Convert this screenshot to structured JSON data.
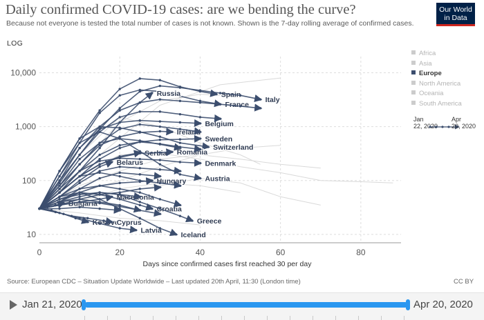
{
  "header": {
    "title": "Daily confirmed COVID-19 cases: are we bending the curve?",
    "subtitle": "Because not everyone is tested the total number of cases is not known. Shown is the 7-day rolling average of confirmed cases.",
    "scale": "LOG",
    "logo": "Our World in Data"
  },
  "legend": {
    "items": [
      {
        "label": "Africa",
        "active": false
      },
      {
        "label": "Asia",
        "active": false
      },
      {
        "label": "Europe",
        "active": true
      },
      {
        "label": "North America",
        "active": false
      },
      {
        "label": "Oceania",
        "active": false
      },
      {
        "label": "South America",
        "active": false
      }
    ],
    "time_start": "Jan 22, 2020",
    "time_end": "Apr 20, 2020"
  },
  "footer": {
    "source": "Source: European CDC – Situation Update Worldwide – Last updated 20th April, 11:30 (London time)",
    "license": "CC BY"
  },
  "timeline": {
    "start": "Jan 21, 2020",
    "end": "Apr 20, 2020"
  },
  "colors": {
    "line": "#3c4e6e",
    "faint_line": "#d9d9d9",
    "grid": "#dddddd",
    "slider": "#2a97f0"
  },
  "chart_data": {
    "type": "line",
    "title": "Daily confirmed COVID-19 cases: are we bending the curve?",
    "xlabel": "Days since confirmed cases first reached 30 per day",
    "ylabel": "",
    "yscale": "log",
    "xlim": [
      0,
      90
    ],
    "ylim": [
      7,
      20000
    ],
    "xticks": [
      0,
      20,
      40,
      60,
      80
    ],
    "yticks": [
      10,
      100,
      1000,
      10000
    ],
    "ytick_labels": [
      "10",
      "100",
      "1,000",
      "10,000"
    ],
    "series": [
      {
        "name": "Spain",
        "x": [
          0,
          5,
          10,
          15,
          20,
          25,
          30,
          35,
          40,
          44
        ],
        "y": [
          30,
          150,
          600,
          2000,
          5000,
          7800,
          7300,
          5500,
          4500,
          4000
        ],
        "label": true
      },
      {
        "name": "Italy",
        "x": [
          0,
          5,
          10,
          15,
          20,
          25,
          30,
          35,
          40,
          45,
          50,
          55
        ],
        "y": [
          30,
          100,
          300,
          900,
          2200,
          4500,
          5700,
          5300,
          4700,
          4200,
          3800,
          3200
        ],
        "label": true
      },
      {
        "name": "France",
        "x": [
          0,
          5,
          10,
          15,
          20,
          25,
          30,
          35,
          40,
          45
        ],
        "y": [
          30,
          120,
          500,
          1800,
          3800,
          4800,
          4500,
          3700,
          3000,
          2600
        ],
        "label": true
      },
      {
        "name": "Russia",
        "x": [
          0,
          5,
          10,
          15,
          20,
          25,
          28
        ],
        "y": [
          30,
          60,
          150,
          400,
          1200,
          2800,
          4200
        ],
        "label": true
      },
      {
        "name": "Belgium",
        "x": [
          0,
          5,
          10,
          15,
          20,
          25,
          30,
          35,
          40
        ],
        "y": [
          30,
          100,
          400,
          900,
          1200,
          1300,
          1250,
          1200,
          1150
        ],
        "label": true
      },
      {
        "name": "Ireland",
        "x": [
          0,
          5,
          10,
          15,
          20,
          25,
          30,
          33
        ],
        "y": [
          30,
          80,
          200,
          450,
          650,
          780,
          820,
          800
        ],
        "label": true
      },
      {
        "name": "Sweden",
        "x": [
          0,
          5,
          10,
          15,
          20,
          25,
          30,
          35,
          40
        ],
        "y": [
          30,
          60,
          120,
          250,
          400,
          520,
          570,
          580,
          600
        ],
        "label": true
      },
      {
        "name": "Switzerland",
        "x": [
          0,
          5,
          10,
          15,
          20,
          25,
          30,
          35,
          42
        ],
        "y": [
          30,
          150,
          600,
          1000,
          950,
          800,
          650,
          500,
          420
        ],
        "label": true
      },
      {
        "name": "Serbia",
        "x": [
          0,
          5,
          10,
          15,
          20,
          25
        ],
        "y": [
          30,
          60,
          120,
          200,
          280,
          330
        ],
        "label": true
      },
      {
        "name": "Romania",
        "x": [
          0,
          5,
          10,
          15,
          20,
          25,
          30,
          33
        ],
        "y": [
          30,
          60,
          120,
          200,
          270,
          320,
          330,
          340
        ],
        "label": true
      },
      {
        "name": "Belarus",
        "x": [
          0,
          5,
          10,
          15,
          18
        ],
        "y": [
          30,
          50,
          100,
          180,
          220
        ],
        "label": true
      },
      {
        "name": "Denmark",
        "x": [
          0,
          5,
          10,
          15,
          20,
          25,
          30,
          35,
          40
        ],
        "y": [
          30,
          70,
          150,
          230,
          260,
          250,
          240,
          220,
          210
        ],
        "label": true
      },
      {
        "name": "Austria",
        "x": [
          0,
          5,
          10,
          15,
          20,
          25,
          30,
          35,
          40
        ],
        "y": [
          30,
          150,
          500,
          800,
          600,
          350,
          200,
          130,
          110
        ],
        "label": true
      },
      {
        "name": "Hungary",
        "x": [
          0,
          5,
          10,
          15,
          20,
          25,
          28
        ],
        "y": [
          30,
          40,
          60,
          80,
          90,
          95,
          100
        ],
        "label": true
      },
      {
        "name": "Bulgaria",
        "x": [
          0,
          2,
          4,
          6
        ],
        "y": [
          30,
          32,
          35,
          38
        ],
        "label": true
      },
      {
        "name": "Macedonia",
        "x": [
          0,
          5,
          10,
          15,
          18
        ],
        "y": [
          30,
          35,
          40,
          45,
          50
        ],
        "label": true
      },
      {
        "name": "Croatia",
        "x": [
          0,
          5,
          10,
          15,
          20,
          25,
          28
        ],
        "y": [
          30,
          45,
          60,
          55,
          45,
          35,
          30
        ],
        "label": true
      },
      {
        "name": "Greece",
        "x": [
          0,
          5,
          10,
          15,
          20,
          25,
          30,
          35,
          38
        ],
        "y": [
          30,
          45,
          55,
          60,
          55,
          40,
          30,
          22,
          18
        ],
        "label": true
      },
      {
        "name": "Kosovo",
        "x": [
          0,
          3,
          6,
          9,
          12
        ],
        "y": [
          30,
          28,
          24,
          20,
          17
        ],
        "label": true
      },
      {
        "name": "Cyprus",
        "x": [
          0,
          4,
          8,
          12,
          16,
          18
        ],
        "y": [
          30,
          26,
          22,
          20,
          18,
          17
        ],
        "label": true
      },
      {
        "name": "Latvia",
        "x": [
          0,
          5,
          10,
          15,
          20,
          24
        ],
        "y": [
          30,
          25,
          20,
          16,
          13,
          12
        ],
        "label": true
      },
      {
        "name": "Iceland",
        "x": [
          0,
          5,
          10,
          15,
          20,
          25,
          30,
          34
        ],
        "y": [
          30,
          50,
          60,
          45,
          30,
          20,
          13,
          10
        ],
        "label": true
      },
      {
        "name": "",
        "x": [
          0,
          5,
          10,
          15,
          20,
          25,
          30,
          35,
          40,
          45,
          50,
          55
        ],
        "y": [
          30,
          120,
          400,
          1000,
          2000,
          2800,
          3200,
          3000,
          2800,
          2600,
          2400,
          2200
        ],
        "label": false
      },
      {
        "name": "",
        "x": [
          0,
          5,
          10,
          15,
          20,
          25,
          30,
          35,
          40,
          45
        ],
        "y": [
          30,
          90,
          300,
          800,
          1500,
          1900,
          1900,
          1700,
          1500,
          1400
        ],
        "label": false
      },
      {
        "name": "",
        "x": [
          0,
          5,
          10,
          15,
          20,
          25,
          30,
          35,
          40
        ],
        "y": [
          30,
          70,
          200,
          500,
          900,
          1100,
          1000,
          900,
          800
        ],
        "label": false
      },
      {
        "name": "",
        "x": [
          0,
          5,
          10,
          15,
          20,
          25,
          30,
          35,
          40
        ],
        "y": [
          30,
          60,
          150,
          300,
          450,
          520,
          480,
          420,
          380
        ],
        "label": false
      },
      {
        "name": "",
        "x": [
          0,
          5,
          10,
          15,
          20,
          25,
          30,
          35
        ],
        "y": [
          30,
          80,
          250,
          500,
          600,
          550,
          470,
          400
        ],
        "label": false
      },
      {
        "name": "",
        "x": [
          0,
          5,
          10,
          15,
          20,
          25,
          30,
          35
        ],
        "y": [
          30,
          50,
          90,
          150,
          180,
          170,
          160,
          150
        ],
        "label": false
      },
      {
        "name": "",
        "x": [
          0,
          5,
          10,
          15,
          20,
          25,
          30
        ],
        "y": [
          30,
          40,
          70,
          110,
          140,
          130,
          120
        ],
        "label": false
      },
      {
        "name": "",
        "x": [
          0,
          5,
          10,
          15,
          20,
          25,
          30,
          35
        ],
        "y": [
          30,
          60,
          120,
          140,
          120,
          100,
          90,
          80
        ],
        "label": false
      },
      {
        "name": "",
        "x": [
          0,
          5,
          10,
          15,
          20,
          25,
          30
        ],
        "y": [
          30,
          35,
          45,
          55,
          60,
          70,
          75
        ],
        "label": false
      },
      {
        "name": "",
        "x": [
          0,
          5,
          10,
          15,
          20,
          25
        ],
        "y": [
          30,
          40,
          50,
          60,
          55,
          50
        ],
        "label": false
      },
      {
        "name": "",
        "x": [
          0,
          5,
          10,
          15,
          20,
          25,
          30,
          35
        ],
        "y": [
          30,
          50,
          70,
          80,
          70,
          60,
          45,
          35
        ],
        "label": false
      },
      {
        "name": "",
        "x": [
          0,
          5,
          10,
          15,
          20,
          25
        ],
        "y": [
          30,
          40,
          45,
          40,
          35,
          28
        ],
        "label": false
      },
      {
        "name": "",
        "x": [
          0,
          5,
          10,
          15,
          20
        ],
        "y": [
          30,
          30,
          32,
          30,
          28
        ],
        "label": false
      },
      {
        "name": "",
        "x": [
          0,
          5,
          10,
          15,
          20,
          25,
          30
        ],
        "y": [
          30,
          35,
          40,
          38,
          33,
          28,
          24
        ],
        "label": false
      }
    ],
    "faint_series": [
      {
        "x": [
          0,
          10,
          20,
          30,
          40,
          50,
          60,
          70,
          80,
          88
        ],
        "y": [
          30,
          120,
          300,
          320,
          250,
          180,
          140,
          100,
          95,
          90
        ]
      },
      {
        "x": [
          0,
          10,
          20,
          30,
          40,
          50,
          60,
          70
        ],
        "y": [
          30,
          80,
          150,
          250,
          300,
          250,
          200,
          170
        ]
      },
      {
        "x": [
          0,
          10,
          20,
          30,
          40,
          50,
          60,
          70
        ],
        "y": [
          30,
          45,
          60,
          80,
          110,
          90,
          50,
          35
        ]
      },
      {
        "x": [
          0,
          10,
          20,
          30,
          40,
          50,
          55
        ],
        "y": [
          30,
          300,
          1500,
          1000,
          500,
          300,
          200
        ]
      },
      {
        "x": [
          0,
          10,
          20,
          30,
          40,
          50,
          60
        ],
        "y": [
          30,
          60,
          100,
          180,
          300,
          400,
          450
        ]
      },
      {
        "x": [
          0,
          10,
          20,
          30,
          40,
          50
        ],
        "y": [
          30,
          40,
          70,
          90,
          80,
          60
        ]
      },
      {
        "x": [
          0,
          10,
          20,
          30,
          40
        ],
        "y": [
          30,
          25,
          20,
          18,
          15
        ]
      },
      {
        "x": [
          0,
          10,
          20,
          30,
          40,
          45
        ],
        "y": [
          30,
          200,
          1200,
          3000,
          4000,
          3800
        ]
      },
      {
        "x": [
          0,
          15,
          30,
          45,
          60
        ],
        "y": [
          30,
          300,
          2500,
          6000,
          8000
        ]
      }
    ],
    "legend": [
      "Africa",
      "Asia",
      "Europe",
      "North America",
      "Oceania",
      "South America"
    ]
  }
}
